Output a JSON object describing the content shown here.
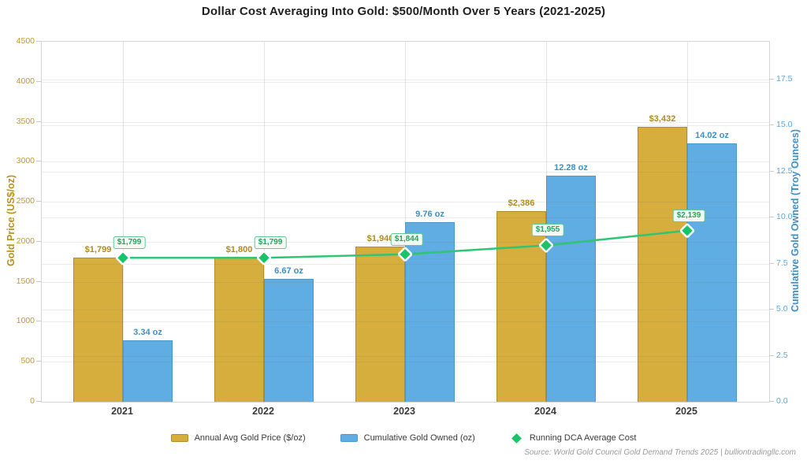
{
  "title": "Dollar Cost Averaging Into Gold: $500/Month Over 5 Years (2021-2025)",
  "footer": {
    "source": "Source: World Gold Council Gold Demand Trends 2025 | bulliontradingllc.com"
  },
  "chart_data": {
    "type": "bar",
    "title": "Dollar Cost Averaging Into Gold: $500/Month Over 5 Years (2021-2025)",
    "categories": [
      "2021",
      "2022",
      "2023",
      "2024",
      "2025"
    ],
    "series": [
      {
        "name": "Annual Avg Gold Price ($/oz)",
        "type": "bar",
        "axis": "left",
        "color": "#D6AE3E",
        "border_color": "#B28E2A",
        "label_color": "#B08A1E",
        "values": [
          1799,
          1800,
          1940,
          2386,
          3432
        ],
        "labels": [
          "$1,799",
          "$1,800",
          "$1,940",
          "$2,386",
          "$3,432"
        ]
      },
      {
        "name": "Cumulative Gold Owned (oz)",
        "type": "bar",
        "axis": "right",
        "color": "#5FADE2",
        "border_color": "#4E97CB",
        "label_color": "#3E8FC7",
        "values": [
          3.34,
          6.67,
          9.76,
          12.28,
          14.02
        ],
        "labels": [
          "3.34 oz",
          "6.67 oz",
          "9.76 oz",
          "12.28 oz",
          "14.02 oz"
        ]
      },
      {
        "name": "Running DCA Average Cost",
        "type": "line",
        "axis": "left",
        "color": "#2EC573",
        "marker": "diamond",
        "marker_color": "#18C36A",
        "label_color": "#27A35B",
        "values": [
          1799,
          1799,
          1844,
          1955,
          2139
        ],
        "labels": [
          "$1,799",
          "$1,799",
          "$1,844",
          "$1,955",
          "$2,139"
        ]
      }
    ],
    "left_axis": {
      "label": "Gold Price (US$/oz)",
      "min": 0,
      "max": 4500,
      "step": 500,
      "ticks": [
        "0",
        "500",
        "1000",
        "1500",
        "2000",
        "2500",
        "3000",
        "3500",
        "4000",
        "4500"
      ],
      "color": "#B8921E"
    },
    "right_axis": {
      "label": "Cumulative Gold Owned (Troy Ounces)",
      "min": 0,
      "max": 19.54,
      "tick_step": 2.5,
      "tick_max": 17.5,
      "ticks": [
        "0.0",
        "2.5",
        "5.0",
        "7.5",
        "10.0",
        "12.5",
        "15.0",
        "17.5"
      ],
      "color": "#3E8FC7"
    },
    "grid": true,
    "legend_position": "bottom"
  }
}
